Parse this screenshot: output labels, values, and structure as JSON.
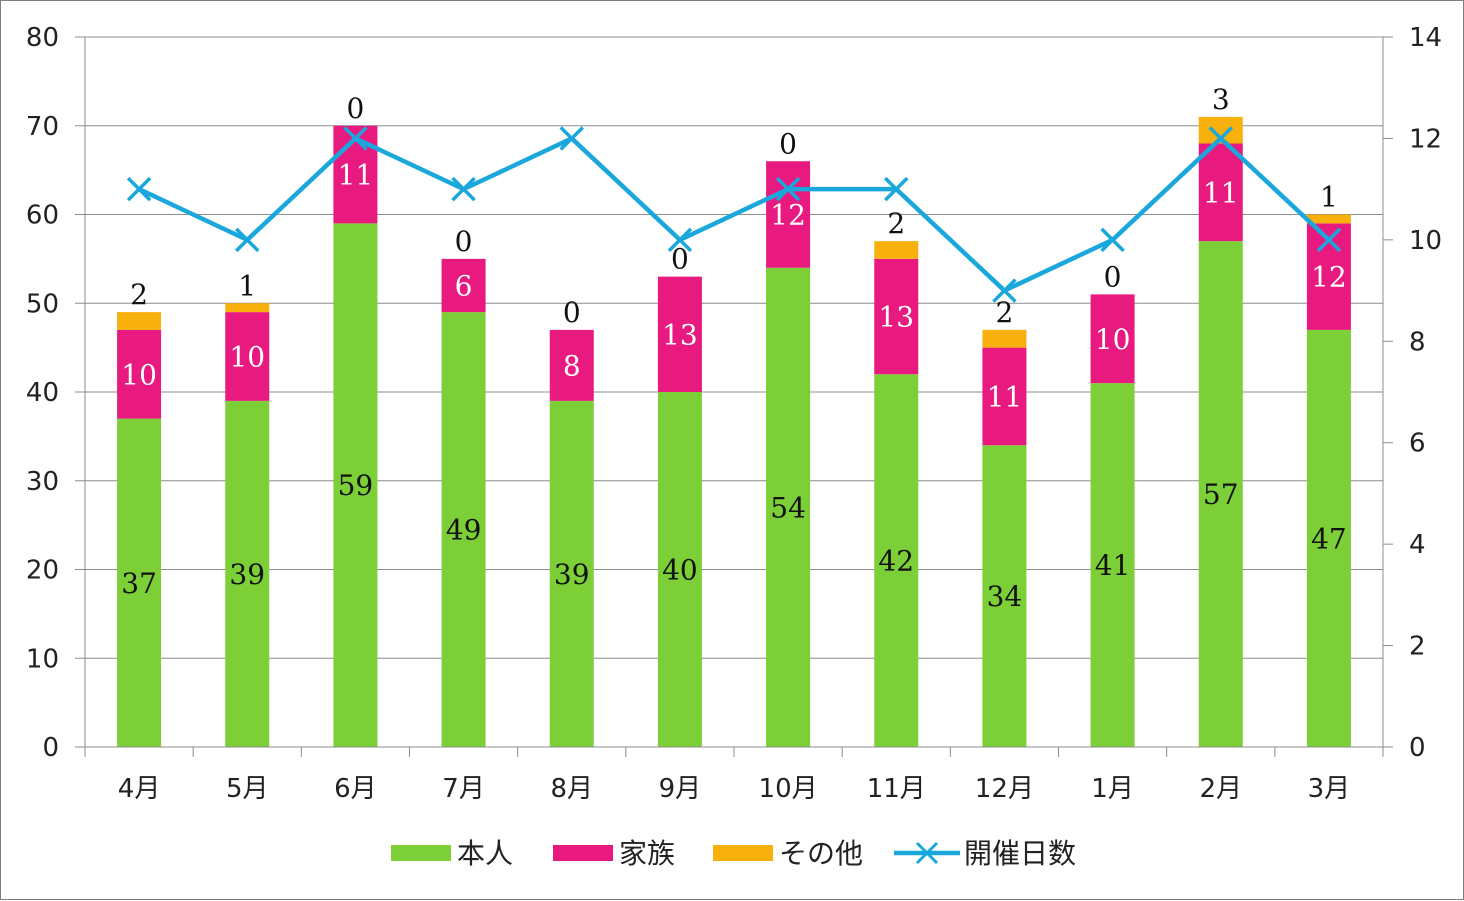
{
  "chart_data": {
    "type": "bar",
    "stacked": true,
    "categories": [
      "4月",
      "5月",
      "6月",
      "7月",
      "8月",
      "9月",
      "10月",
      "11月",
      "12月",
      "1月",
      "2月",
      "3月"
    ],
    "series": [
      {
        "name": "本人",
        "type": "bar",
        "axis": "left",
        "color": "#7ccf36",
        "label_color": "#111111",
        "values": [
          37,
          39,
          59,
          49,
          39,
          40,
          54,
          42,
          34,
          41,
          57,
          47
        ]
      },
      {
        "name": "家族",
        "type": "bar",
        "axis": "left",
        "color": "#e8197f",
        "label_color": "#ffffff",
        "values": [
          10,
          10,
          11,
          6,
          8,
          13,
          12,
          13,
          11,
          10,
          11,
          12
        ]
      },
      {
        "name": "その他",
        "type": "bar",
        "axis": "left",
        "color": "#f8b10c",
        "label_color": "#111111",
        "values": [
          2,
          1,
          0,
          0,
          0,
          0,
          0,
          2,
          2,
          0,
          3,
          1
        ]
      },
      {
        "name": "開催日数",
        "type": "line",
        "axis": "right",
        "color": "#1aa7dc",
        "marker": "x",
        "values": [
          11,
          10,
          12,
          11,
          12,
          10,
          11,
          11,
          9,
          10,
          12,
          10
        ]
      }
    ],
    "ylim": [
      0,
      80
    ],
    "yticks": [
      "0",
      "10",
      "20",
      "30",
      "40",
      "50",
      "60",
      "70",
      "80"
    ],
    "y2lim": [
      0,
      14
    ],
    "y2ticks": [
      "0",
      "2",
      "4",
      "6",
      "8",
      "10",
      "12",
      "14"
    ],
    "grid": true,
    "legend": "bottom"
  }
}
